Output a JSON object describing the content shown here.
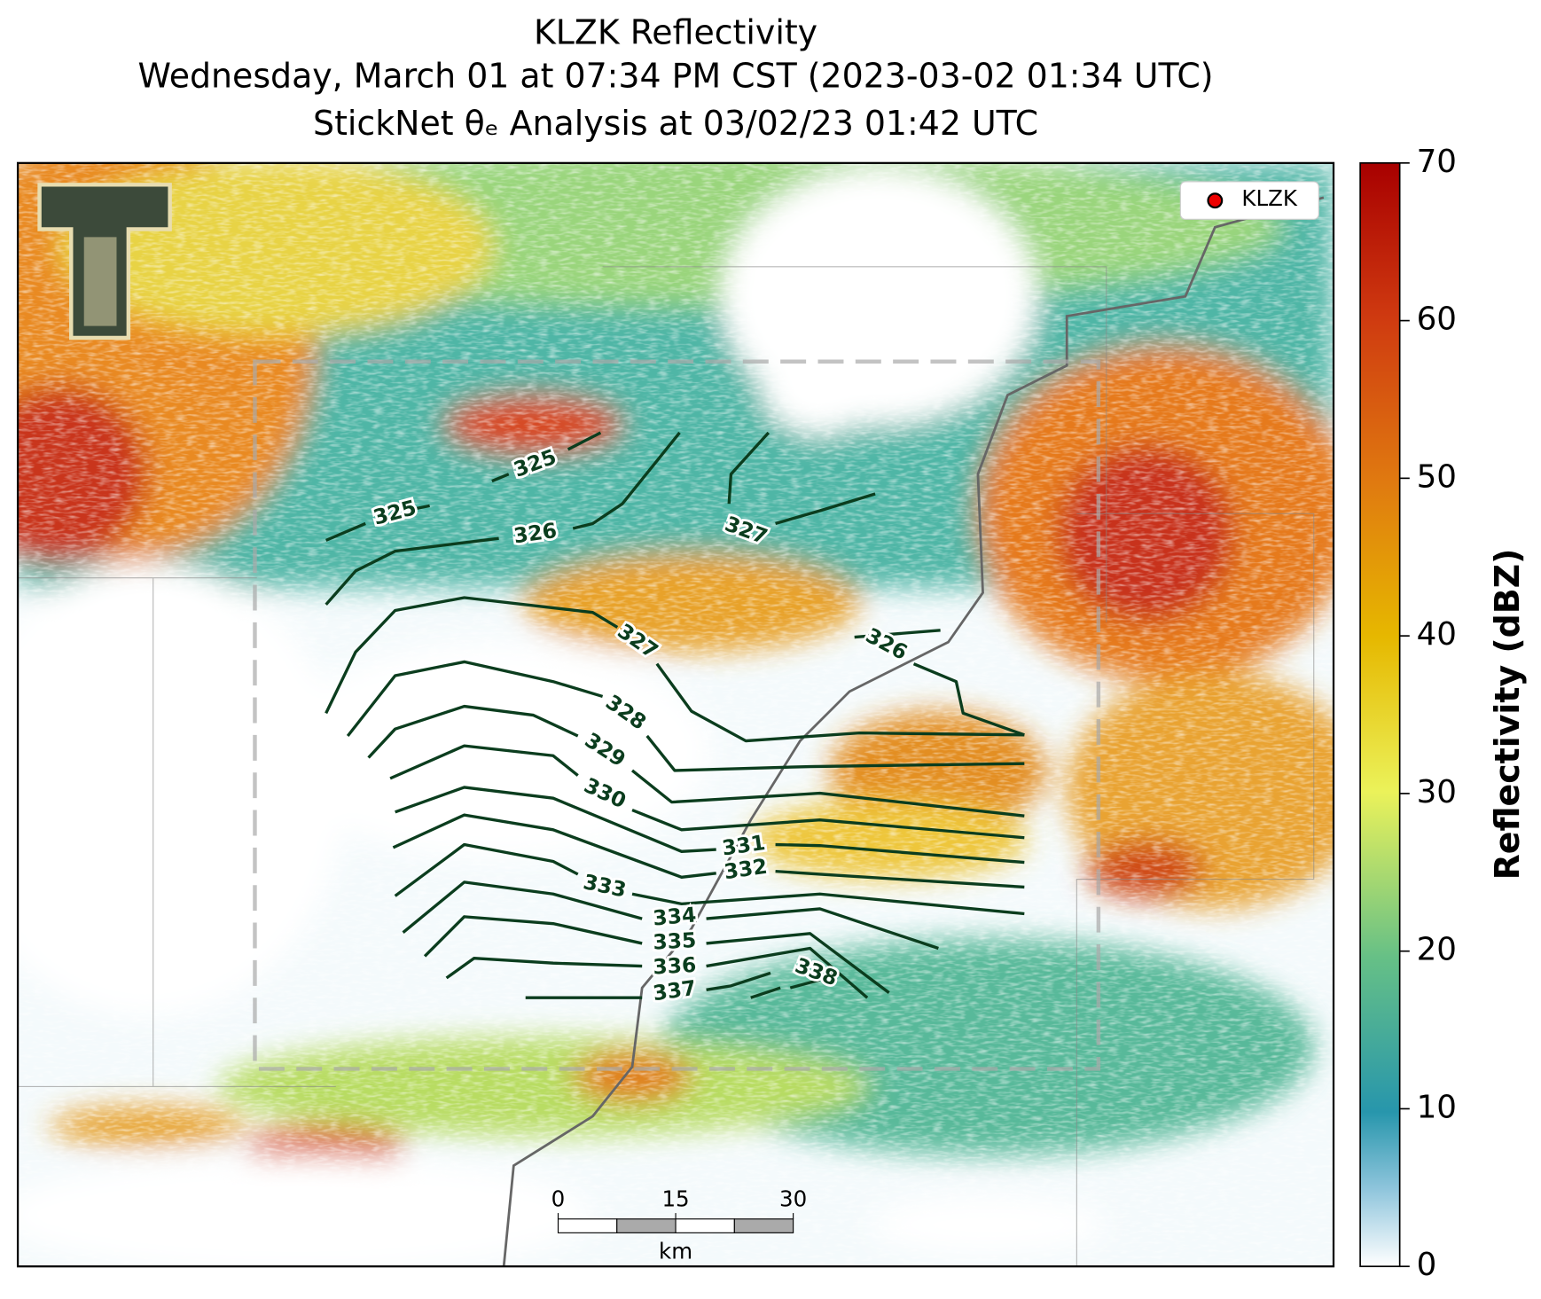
{
  "title": [
    "KLZK Reflectivity",
    "Wednesday, March 01 at 07:34 PM CST (2023-03-02 01:34 UTC)",
    "StickNet θₑ Analysis at 03/02/23 01:42 UTC"
  ],
  "legend": {
    "label": "KLZK"
  },
  "contours": {
    "labels": [
      325,
      325,
      326,
      327,
      327,
      326,
      328,
      329,
      330,
      331,
      332,
      333,
      334,
      335,
      336,
      337,
      338
    ]
  },
  "colorbar": {
    "label": "Reflectivity (dBZ)",
    "lim": [
      0,
      70
    ],
    "ticks": [
      0,
      10,
      20,
      30,
      40,
      50,
      60,
      70
    ]
  },
  "scale_bar": {
    "ticks": [
      0,
      15,
      30
    ],
    "unit": "km"
  }
}
